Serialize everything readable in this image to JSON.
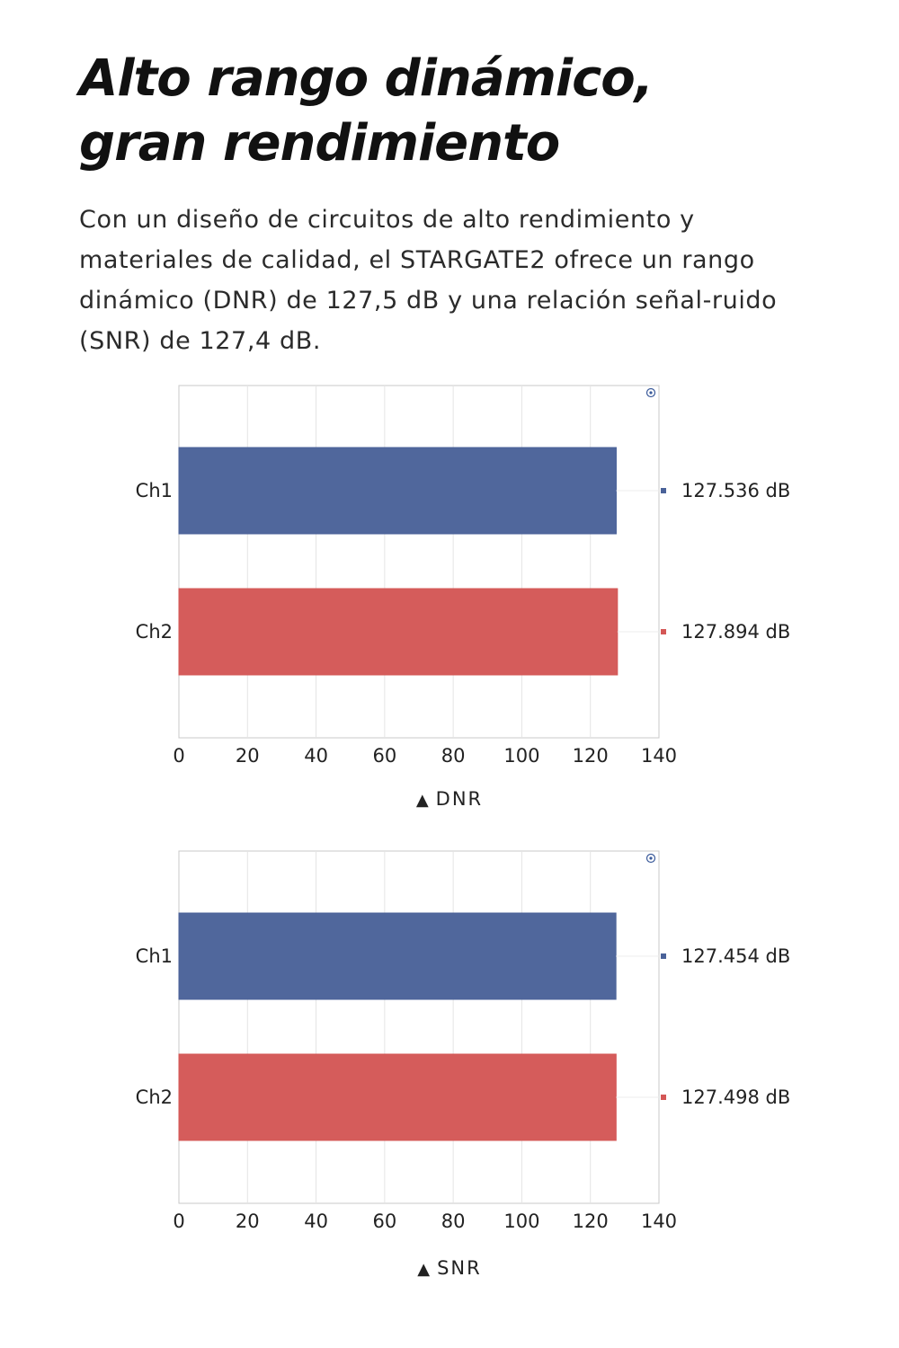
{
  "headline": {
    "line1": "Alto rango dinámico,",
    "line2": "gran rendimiento"
  },
  "body_text": "Con un diseño de circuitos de alto rendimiento y materiales de calidad, el STARGATE2 ofrece un rango dinámico (DNR) de 127,5 dB y una relación señal-ruido (SNR) de 127,4 dB.",
  "caption_marker": "▲",
  "colors": {
    "ch1": "#4a6299",
    "ch2": "#d45756",
    "grid": "#e4e4e4",
    "frame": "#c8c8c8"
  },
  "chart_data": [
    {
      "type": "bar",
      "orientation": "horizontal",
      "categories": [
        "Ch1",
        "Ch2"
      ],
      "values": [
        127.536,
        127.894
      ],
      "value_labels": [
        "127.536 dB",
        "127.894 dB"
      ],
      "xlim": [
        0,
        140
      ],
      "xticks": [
        0,
        20,
        40,
        60,
        80,
        100,
        120,
        140
      ],
      "caption": "DNR",
      "grid": true,
      "colors": [
        "#4a6299",
        "#d45756"
      ]
    },
    {
      "type": "bar",
      "orientation": "horizontal",
      "categories": [
        "Ch1",
        "Ch2"
      ],
      "values": [
        127.454,
        127.498
      ],
      "value_labels": [
        "127.454 dB",
        "127.498 dB"
      ],
      "xlim": [
        0,
        140
      ],
      "xticks": [
        0,
        20,
        40,
        60,
        80,
        100,
        120,
        140
      ],
      "caption": "SNR",
      "grid": true,
      "colors": [
        "#4a6299",
        "#d45756"
      ]
    }
  ]
}
